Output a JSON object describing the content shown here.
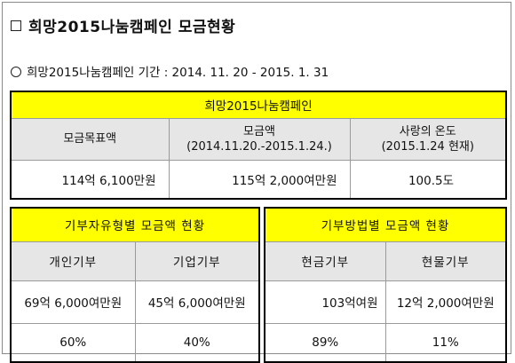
{
  "title": "희망2015나눔캠페인 모금현황",
  "period": "희망2015나눔캠페인 기간 : 2014. 11. 20 - 2015. 1. 31",
  "summary": {
    "header": "희망2015나눔캠페인",
    "goal_label": "모금목표액",
    "raised_label": "모금액",
    "raised_sub": "(2014.11.20.-2015.1.24.)",
    "temp_label": "사랑의 온도",
    "temp_sub": "(2015.1.24 현재)",
    "goal_value": "114억 6,100만원",
    "raised_value": "115억 2,000여만원",
    "temp_value": "100.5도"
  },
  "by_donor": {
    "header": "기부자유형별 모금액 현황",
    "col1": "개인기부",
    "col2": "기업기부",
    "amt1": "69억 6,000여만원",
    "amt2": "45억 6,000여만원",
    "pct1": "60%",
    "pct2": "40%"
  },
  "by_method": {
    "header": "기부방법별 모금액 현황",
    "col1": "현금기부",
    "col2": "현물기부",
    "amt1": "103억여원",
    "amt2": "12억 2,000여만원",
    "pct1": "89%",
    "pct2": "11%"
  },
  "colors": {
    "header_bg": "#ffff00",
    "label_bg": "#e6e6e6"
  }
}
